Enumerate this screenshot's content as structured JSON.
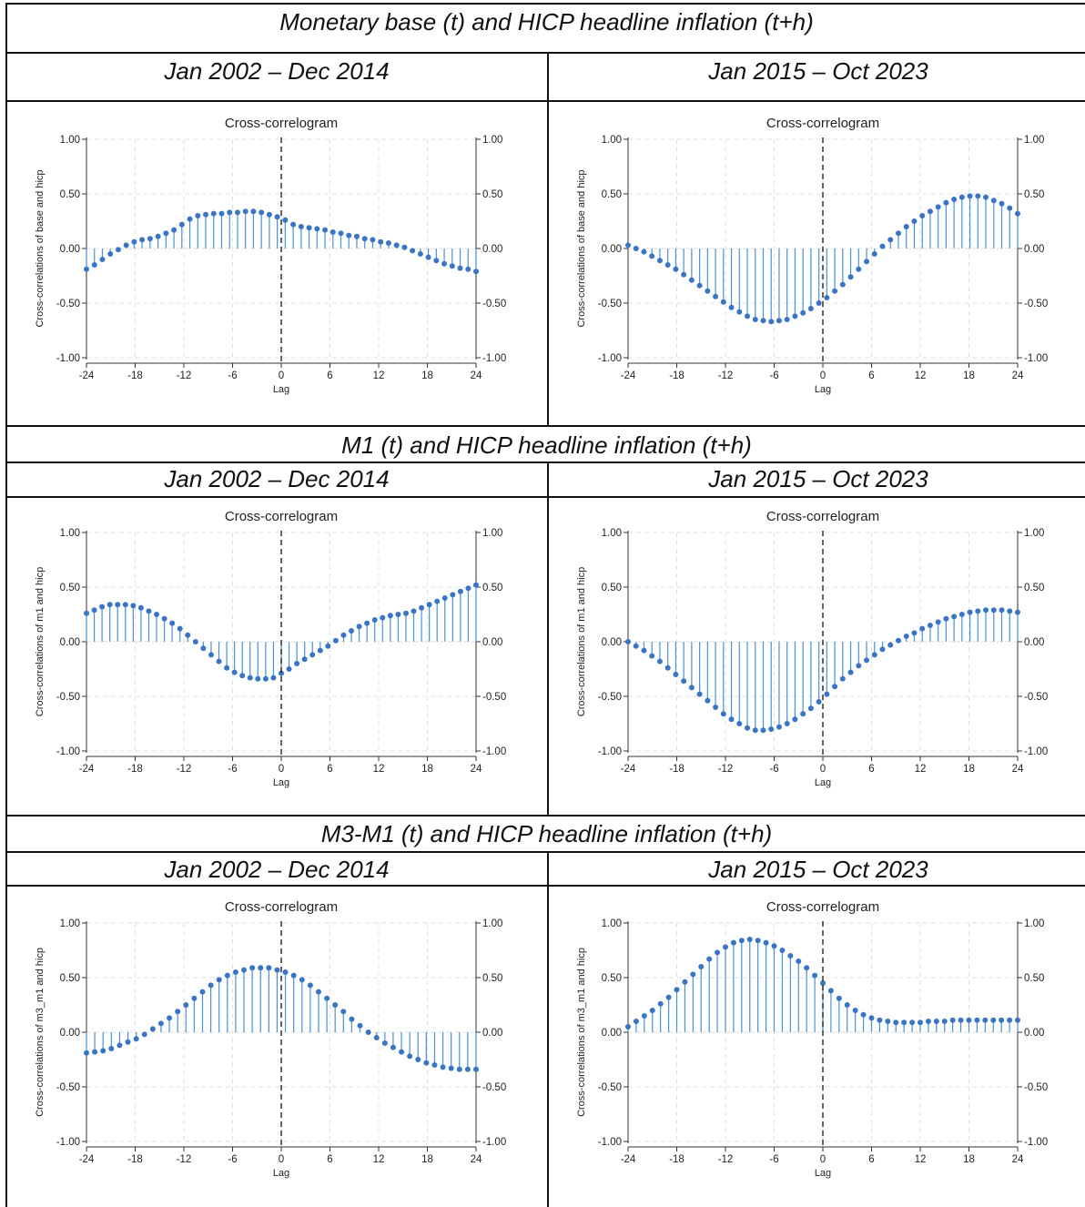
{
  "sections": [
    {
      "title": "Monetary base (t) and HICP headline inflation (t+h)",
      "periods": [
        "Jan 2002 – Dec 2014",
        "Jan 2015 – Oct 2023"
      ]
    },
    {
      "title": "M1 (t) and HICP headline inflation (t+h)",
      "periods": [
        "Jan 2002 – Dec 2014",
        "Jan 2015 – Oct 2023"
      ]
    },
    {
      "title": "M3-M1  (t) and HICP headline inflation (t+h)",
      "periods": [
        "Jan 2002 – Dec 2014",
        "Jan 2015 – Oct 2023"
      ]
    }
  ],
  "colors": {
    "stem": "#4a90d9",
    "marker": "#3a75c4",
    "grid": "#e2e2e2",
    "axis": "#333333"
  },
  "chart_data": [
    {
      "type": "stem",
      "title": "Cross-correlogram",
      "xlabel": "Lag",
      "ylabel": "Cross-correlations of base and hicp",
      "xlim": [
        -24,
        24
      ],
      "ylim": [
        -1,
        1
      ],
      "xticks": [
        "-24",
        "-18",
        "-12",
        "-6",
        "0",
        "6",
        "12",
        "18",
        "24"
      ],
      "yticks": [
        "-1.00",
        "-0.50",
        "0.00",
        "0.50",
        "1.00"
      ],
      "values": [
        -0.19,
        -0.15,
        -0.1,
        -0.05,
        -0.01,
        0.03,
        0.06,
        0.08,
        0.09,
        0.11,
        0.14,
        0.17,
        0.22,
        0.27,
        0.3,
        0.31,
        0.32,
        0.32,
        0.33,
        0.33,
        0.34,
        0.34,
        0.33,
        0.31,
        0.29,
        0.26,
        0.22,
        0.2,
        0.19,
        0.18,
        0.17,
        0.15,
        0.14,
        0.12,
        0.11,
        0.09,
        0.08,
        0.06,
        0.05,
        0.03,
        0.01,
        -0.02,
        -0.05,
        -0.08,
        -0.11,
        -0.14,
        -0.16,
        -0.18,
        -0.19,
        -0.21
      ]
    },
    {
      "type": "stem",
      "title": "Cross-correlogram",
      "xlabel": "Lag",
      "ylabel": "Cross-correlations of base and hicp",
      "xlim": [
        -24,
        24
      ],
      "ylim": [
        -1,
        1
      ],
      "xticks": [
        "-24",
        "-18",
        "-12",
        "-6",
        "0",
        "6",
        "12",
        "18",
        "24"
      ],
      "yticks": [
        "-1.00",
        "-0.50",
        "0.00",
        "0.50",
        "1.00"
      ],
      "values": [
        0.03,
        0.0,
        -0.03,
        -0.07,
        -0.11,
        -0.15,
        -0.19,
        -0.24,
        -0.29,
        -0.34,
        -0.39,
        -0.44,
        -0.49,
        -0.54,
        -0.58,
        -0.62,
        -0.65,
        -0.66,
        -0.67,
        -0.66,
        -0.65,
        -0.62,
        -0.59,
        -0.55,
        -0.5,
        -0.45,
        -0.39,
        -0.33,
        -0.26,
        -0.19,
        -0.12,
        -0.05,
        0.02,
        0.08,
        0.14,
        0.2,
        0.25,
        0.3,
        0.34,
        0.38,
        0.42,
        0.45,
        0.47,
        0.48,
        0.48,
        0.47,
        0.44,
        0.41,
        0.37,
        0.32
      ]
    },
    {
      "type": "stem",
      "title": "Cross-correlogram",
      "xlabel": "Lag",
      "ylabel": "Cross-correlations of m1 and hicp",
      "xlim": [
        -24,
        24
      ],
      "ylim": [
        -1,
        1
      ],
      "xticks": [
        "-24",
        "-18",
        "-12",
        "-6",
        "0",
        "6",
        "12",
        "18",
        "24"
      ],
      "yticks": [
        "-1.00",
        "-0.50",
        "0.00",
        "0.50",
        "1.00"
      ],
      "values": [
        0.26,
        0.29,
        0.32,
        0.34,
        0.34,
        0.34,
        0.33,
        0.31,
        0.28,
        0.25,
        0.21,
        0.17,
        0.12,
        0.06,
        0.0,
        -0.06,
        -0.12,
        -0.18,
        -0.24,
        -0.28,
        -0.31,
        -0.33,
        -0.34,
        -0.34,
        -0.33,
        -0.29,
        -0.25,
        -0.2,
        -0.16,
        -0.12,
        -0.08,
        -0.04,
        0.01,
        0.06,
        0.1,
        0.14,
        0.17,
        0.2,
        0.22,
        0.24,
        0.25,
        0.26,
        0.28,
        0.31,
        0.34,
        0.37,
        0.4,
        0.43,
        0.46,
        0.49,
        0.52
      ]
    },
    {
      "type": "stem",
      "title": "Cross-correlogram",
      "xlabel": "Lag",
      "ylabel": "Cross-correlations of m1 and hicp",
      "xlim": [
        -24,
        24
      ],
      "ylim": [
        -1,
        1
      ],
      "xticks": [
        "-24",
        "-18",
        "-12",
        "-6",
        "0",
        "6",
        "12",
        "18",
        "24"
      ],
      "yticks": [
        "-1.00",
        "-0.50",
        "0.00",
        "0.50",
        "1.00"
      ],
      "values": [
        0.0,
        -0.04,
        -0.08,
        -0.13,
        -0.18,
        -0.24,
        -0.3,
        -0.36,
        -0.42,
        -0.48,
        -0.54,
        -0.6,
        -0.66,
        -0.71,
        -0.75,
        -0.79,
        -0.81,
        -0.81,
        -0.8,
        -0.78,
        -0.75,
        -0.71,
        -0.66,
        -0.61,
        -0.55,
        -0.48,
        -0.41,
        -0.34,
        -0.28,
        -0.22,
        -0.17,
        -0.12,
        -0.07,
        -0.03,
        0.01,
        0.05,
        0.08,
        0.12,
        0.15,
        0.18,
        0.21,
        0.23,
        0.25,
        0.27,
        0.28,
        0.29,
        0.29,
        0.29,
        0.28,
        0.27
      ]
    },
    {
      "type": "stem",
      "title": "Cross-correlogram",
      "xlabel": "Lag",
      "ylabel": "Cross-correlations of m3_m1 and hicp",
      "xlim": [
        -24,
        24
      ],
      "ylim": [
        -1,
        1
      ],
      "xticks": [
        "-24",
        "-18",
        "-12",
        "-6",
        "0",
        "6",
        "12",
        "18",
        "24"
      ],
      "yticks": [
        "-1.00",
        "-0.50",
        "0.00",
        "0.50",
        "1.00"
      ],
      "values": [
        -0.19,
        -0.18,
        -0.17,
        -0.15,
        -0.12,
        -0.09,
        -0.06,
        -0.02,
        0.03,
        0.08,
        0.13,
        0.19,
        0.25,
        0.31,
        0.37,
        0.43,
        0.48,
        0.52,
        0.55,
        0.57,
        0.59,
        0.59,
        0.59,
        0.57,
        0.55,
        0.52,
        0.48,
        0.43,
        0.37,
        0.31,
        0.25,
        0.19,
        0.12,
        0.06,
        0.0,
        -0.05,
        -0.1,
        -0.14,
        -0.18,
        -0.22,
        -0.25,
        -0.28,
        -0.3,
        -0.32,
        -0.33,
        -0.34,
        -0.34,
        -0.34
      ]
    },
    {
      "type": "stem",
      "title": "Cross-correlogram",
      "xlabel": "Lag",
      "ylabel": "Cross-correlations of m3_m1 and hicp",
      "xlim": [
        -24,
        24
      ],
      "ylim": [
        -1,
        1
      ],
      "xticks": [
        "-24",
        "-18",
        "-12",
        "-6",
        "0",
        "6",
        "12",
        "18",
        "24"
      ],
      "yticks": [
        "-1.00",
        "-0.50",
        "0.00",
        "0.50",
        "1.00"
      ],
      "values": [
        0.05,
        0.1,
        0.15,
        0.2,
        0.26,
        0.32,
        0.39,
        0.46,
        0.53,
        0.6,
        0.67,
        0.73,
        0.78,
        0.82,
        0.84,
        0.85,
        0.84,
        0.82,
        0.79,
        0.75,
        0.7,
        0.65,
        0.59,
        0.52,
        0.45,
        0.38,
        0.31,
        0.25,
        0.2,
        0.16,
        0.13,
        0.11,
        0.1,
        0.09,
        0.09,
        0.09,
        0.09,
        0.1,
        0.1,
        0.1,
        0.11,
        0.11,
        0.11,
        0.11,
        0.11,
        0.11,
        0.11,
        0.11,
        0.11
      ]
    }
  ]
}
